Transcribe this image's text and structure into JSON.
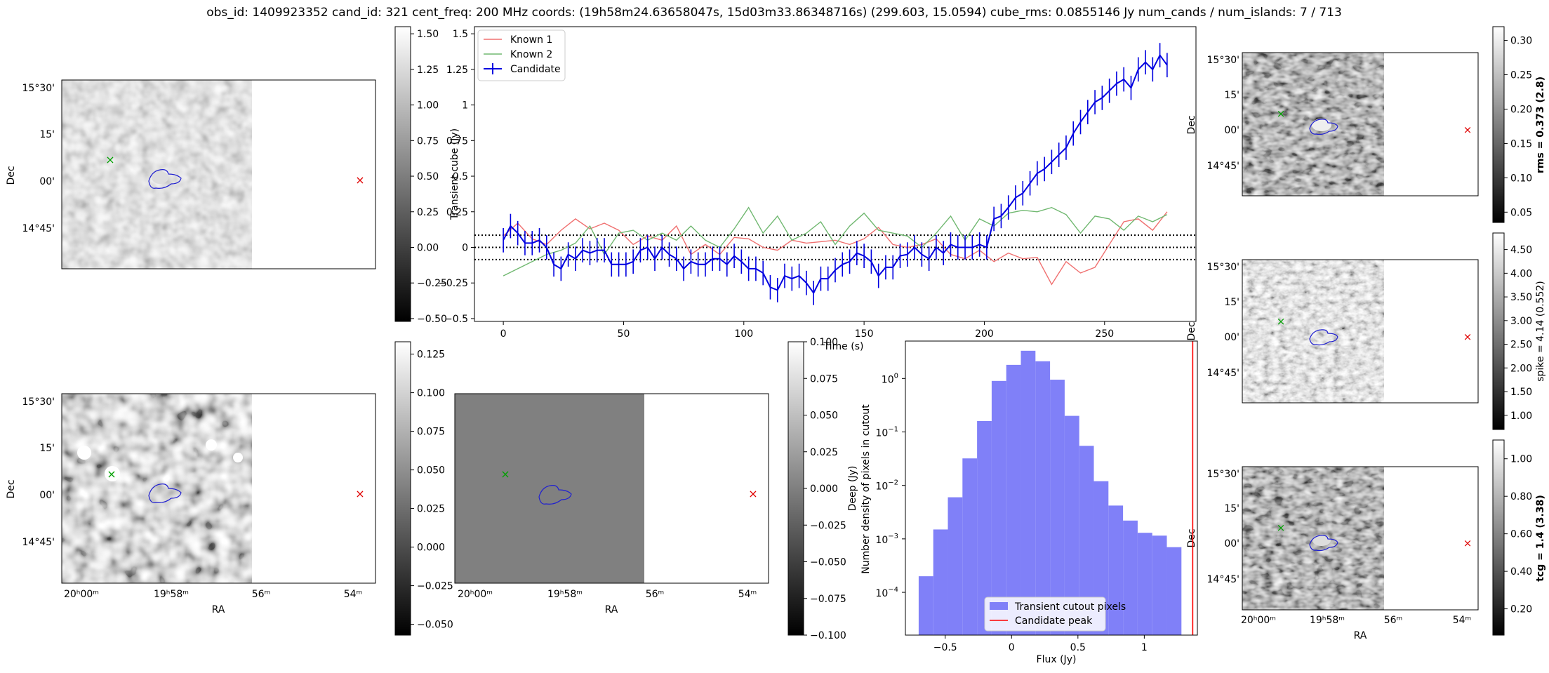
{
  "suptitle": "obs_id: 1409923352 cand_id: 321 cent_freq: 200 MHz coords: (19h58m24.63658047s, 15d03m33.86348716s) (299.603, 15.0594) cube_rms: 0.0855146 Jy num_cands / num_islands: 7 / 713",
  "colors": {
    "known1": "#f07070",
    "known2": "#70b870",
    "candidate": "#0000e0",
    "hist_fill": "#8080f8",
    "peak_line": "#ff0000",
    "contour": "#2020d0",
    "green_marker": "#00a000",
    "red_marker": "#e00000"
  },
  "chart_data": [
    {
      "id": "lightcurve",
      "type": "line",
      "xlabel": "Time (s)",
      "ylabel": "Transient cube (Jy)",
      "xlim": [
        -12,
        288
      ],
      "ylim": [
        -0.52,
        1.55
      ],
      "x_ticks": [
        0,
        50,
        100,
        150,
        200,
        250
      ],
      "y_ticks": [
        -0.5,
        -0.25,
        0.0,
        0.25,
        0.5,
        0.75,
        1.0,
        1.25,
        1.5
      ],
      "legend_position": "top-left",
      "legend": [
        "Known 1",
        "Known 2",
        "Candidate"
      ],
      "hlines": [
        -0.0855,
        0.0,
        0.0855
      ],
      "series": [
        {
          "name": "Known 1",
          "x": [
            0,
            6,
            12,
            18,
            24,
            30,
            36,
            42,
            48,
            54,
            60,
            66,
            72,
            78,
            84,
            90,
            96,
            102,
            108,
            114,
            120,
            126,
            132,
            138,
            144,
            150,
            156,
            162,
            168,
            174,
            180,
            186,
            192,
            198,
            204,
            210,
            216,
            222,
            228,
            234,
            240,
            246,
            252,
            258,
            264,
            270,
            276
          ],
          "values": [
            0.08,
            0.17,
            0.06,
            0.02,
            0.12,
            0.2,
            0.13,
            0.17,
            0.12,
            0.02,
            0.08,
            0.05,
            0.15,
            -0.05,
            0.02,
            -0.05,
            0.07,
            0.06,
            0.0,
            -0.02,
            0.05,
            0.03,
            0.04,
            0.05,
            0.02,
            0.06,
            0.14,
            0.02,
            0.0,
            0.02,
            0.06,
            -0.05,
            -0.08,
            -0.02,
            -0.1,
            -0.04,
            -0.08,
            -0.07,
            -0.26,
            -0.1,
            -0.18,
            -0.14,
            0.02,
            0.18,
            0.2,
            0.12,
            0.25
          ]
        },
        {
          "name": "Known 2",
          "x": [
            0,
            6,
            12,
            18,
            24,
            30,
            36,
            42,
            48,
            54,
            60,
            66,
            72,
            78,
            84,
            90,
            96,
            102,
            108,
            114,
            120,
            126,
            132,
            138,
            144,
            150,
            156,
            162,
            168,
            174,
            180,
            186,
            192,
            198,
            204,
            210,
            216,
            222,
            228,
            234,
            240,
            246,
            252,
            258,
            264,
            270,
            276
          ],
          "values": [
            -0.2,
            -0.15,
            -0.1,
            -0.05,
            -0.02,
            0.03,
            0.15,
            -0.05,
            0.1,
            0.12,
            0.05,
            0.1,
            0.05,
            0.15,
            0.05,
            0.0,
            0.13,
            0.28,
            0.1,
            0.22,
            0.05,
            0.1,
            0.18,
            0.02,
            0.15,
            0.24,
            0.12,
            0.1,
            0.08,
            0.0,
            0.1,
            0.22,
            0.05,
            0.2,
            0.15,
            0.24,
            0.26,
            0.25,
            0.28,
            0.23,
            0.1,
            0.22,
            0.2,
            0.12,
            0.22,
            0.18,
            0.23
          ]
        },
        {
          "name": "Candidate",
          "x": [
            0,
            3,
            6,
            9,
            12,
            15,
            18,
            21,
            24,
            27,
            30,
            33,
            36,
            39,
            42,
            45,
            48,
            51,
            54,
            57,
            60,
            63,
            66,
            69,
            72,
            75,
            78,
            81,
            84,
            87,
            90,
            93,
            96,
            99,
            102,
            105,
            108,
            111,
            114,
            117,
            120,
            123,
            126,
            129,
            132,
            135,
            138,
            141,
            144,
            147,
            150,
            153,
            156,
            159,
            162,
            165,
            168,
            171,
            174,
            177,
            180,
            183,
            186,
            189,
            192,
            195,
            198,
            201,
            204,
            207,
            210,
            213,
            216,
            219,
            222,
            225,
            228,
            231,
            234,
            237,
            240,
            243,
            246,
            249,
            252,
            255,
            258,
            261,
            264,
            267,
            270,
            273,
            276
          ],
          "values": [
            0.05,
            0.15,
            0.1,
            0.03,
            0.03,
            0.05,
            0.0,
            -0.12,
            -0.15,
            -0.05,
            -0.08,
            -0.02,
            -0.04,
            -0.02,
            -0.02,
            -0.12,
            -0.12,
            -0.12,
            -0.1,
            -0.02,
            0.0,
            -0.08,
            0.0,
            -0.05,
            -0.08,
            -0.15,
            -0.1,
            -0.12,
            -0.12,
            -0.08,
            -0.08,
            -0.12,
            -0.06,
            -0.1,
            -0.15,
            -0.15,
            -0.18,
            -0.28,
            -0.3,
            -0.2,
            -0.22,
            -0.2,
            -0.25,
            -0.32,
            -0.22,
            -0.22,
            -0.16,
            -0.12,
            -0.1,
            -0.04,
            -0.06,
            -0.1,
            -0.2,
            -0.14,
            -0.14,
            -0.06,
            -0.05,
            0.0,
            -0.05,
            -0.08,
            0.0,
            -0.04,
            0.02,
            0.0,
            0.0,
            0.0,
            0.02,
            0.0,
            0.2,
            0.22,
            0.28,
            0.35,
            0.38,
            0.45,
            0.52,
            0.55,
            0.6,
            0.65,
            0.7,
            0.8,
            0.88,
            0.95,
            1.02,
            1.05,
            1.1,
            1.15,
            1.18,
            1.12,
            1.25,
            1.3,
            1.25,
            1.35,
            1.28
          ],
          "yerr": 0.0855
        }
      ]
    },
    {
      "id": "histogram",
      "type": "bar",
      "xlabel": "Flux (Jy)",
      "ylabel": "Number density of pixels in cutout",
      "yscale": "log",
      "xlim": [
        -0.8,
        1.4
      ],
      "ylim_log10": [
        -4.8,
        0.7
      ],
      "x_ticks": [
        -0.5,
        0.0,
        0.5,
        1.0
      ],
      "y_ticks_exp": [
        -4,
        -3,
        -2,
        -1,
        0
      ],
      "legend": [
        "Transient cutout pixels",
        "Candidate peak"
      ],
      "legend_position": "bottom-center",
      "bin_edges": [
        -0.7,
        -0.59,
        -0.48,
        -0.37,
        -0.26,
        -0.15,
        -0.04,
        0.07,
        0.18,
        0.29,
        0.4,
        0.51,
        0.62,
        0.73,
        0.84,
        0.95,
        1.06,
        1.17,
        1.28
      ],
      "values": [
        0.0002,
        0.0015,
        0.006,
        0.032,
        0.16,
        0.9,
        1.8,
        3.3,
        2.1,
        0.95,
        0.2,
        0.055,
        0.012,
        0.0042,
        0.0022,
        0.0013,
        0.00115,
        0.0007
      ],
      "candidate_peak": 1.365
    },
    {
      "id": "colorbar_left_top",
      "type": "heatmap",
      "label": "",
      "range": [
        -0.52,
        1.55
      ],
      "ticks": [
        -0.5,
        -0.25,
        0.0,
        0.25,
        0.5,
        0.75,
        1.0,
        1.25,
        1.5
      ]
    },
    {
      "id": "colorbar_left_bottom",
      "type": "heatmap",
      "label": "",
      "range": [
        -0.057,
        0.133
      ],
      "ticks": [
        -0.05,
        -0.025,
        0.0,
        0.025,
        0.05,
        0.075,
        0.1,
        0.125
      ]
    },
    {
      "id": "colorbar_middle",
      "type": "heatmap",
      "label": "Deep (Jy)",
      "range": [
        -0.1,
        0.1
      ],
      "ticks": [
        -0.1,
        -0.075,
        -0.05,
        -0.025,
        0.0,
        0.025,
        0.05,
        0.075,
        0.1
      ]
    },
    {
      "id": "colorbar_rms",
      "type": "heatmap",
      "label": "rms = 0.373 (2.8)",
      "range": [
        0.035,
        0.32
      ],
      "ticks": [
        0.05,
        0.1,
        0.15,
        0.2,
        0.25,
        0.3
      ]
    },
    {
      "id": "colorbar_spike",
      "type": "heatmap",
      "label": "spike = 4.14 (0.552)",
      "range": [
        0.7,
        4.85
      ],
      "ticks": [
        1.0,
        1.5,
        2.0,
        2.5,
        3.0,
        3.5,
        4.0,
        4.5
      ]
    },
    {
      "id": "colorbar_tcg",
      "type": "heatmap",
      "label": "tcg = 1.4 (3.38)",
      "range": [
        0.06,
        1.1
      ],
      "ticks": [
        0.2,
        0.4,
        0.6,
        0.8,
        1.0
      ]
    }
  ],
  "sky_axes": {
    "dec_label": "Dec",
    "ra_label": "RA",
    "dec_ticks": [
      "15°30'",
      "15'",
      "00'",
      "14°45'"
    ],
    "ra_ticks": [
      "20ʰ00ᵐ",
      "19ʰ58ᵐ",
      "56ᵐ",
      "54ᵐ"
    ]
  },
  "markers": {
    "green": "×",
    "red": "×"
  }
}
